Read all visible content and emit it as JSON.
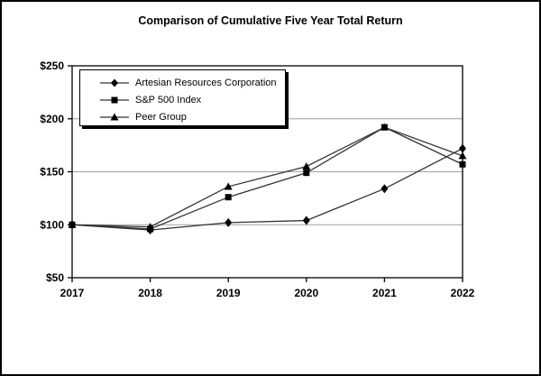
{
  "chart_data": {
    "type": "line",
    "title": "Comparison of Cumulative Five Year Total Return",
    "categories": [
      "2017",
      "2018",
      "2019",
      "2020",
      "2021",
      "2022"
    ],
    "series": [
      {
        "name": "Artesian Resources Corporation",
        "marker": "diamond",
        "values": [
          100,
          95,
          102,
          104,
          134,
          172
        ]
      },
      {
        "name": "S&P 500 Index",
        "marker": "square",
        "values": [
          100,
          96,
          126,
          149,
          192,
          157
        ]
      },
      {
        "name": "Peer Group",
        "marker": "triangle",
        "values": [
          100,
          98,
          136,
          155,
          192,
          165
        ]
      }
    ],
    "xlabel": "",
    "ylabel": "",
    "ylim": [
      50,
      250
    ],
    "y_ticks": [
      50,
      100,
      150,
      200,
      250
    ],
    "y_tick_labels": [
      "$50",
      "$100",
      "$150",
      "$200",
      "$250"
    ],
    "x_tick_labels": [
      "2017",
      "2018",
      "2019",
      "2020",
      "2021",
      "2022"
    ],
    "grid": "horizontal",
    "legend_position": "top-left-inside",
    "colors": {
      "line": "#333333",
      "marker": "#000000",
      "grid": "#a0a0a0",
      "axis": "#000000",
      "background": "#ffffff"
    }
  }
}
